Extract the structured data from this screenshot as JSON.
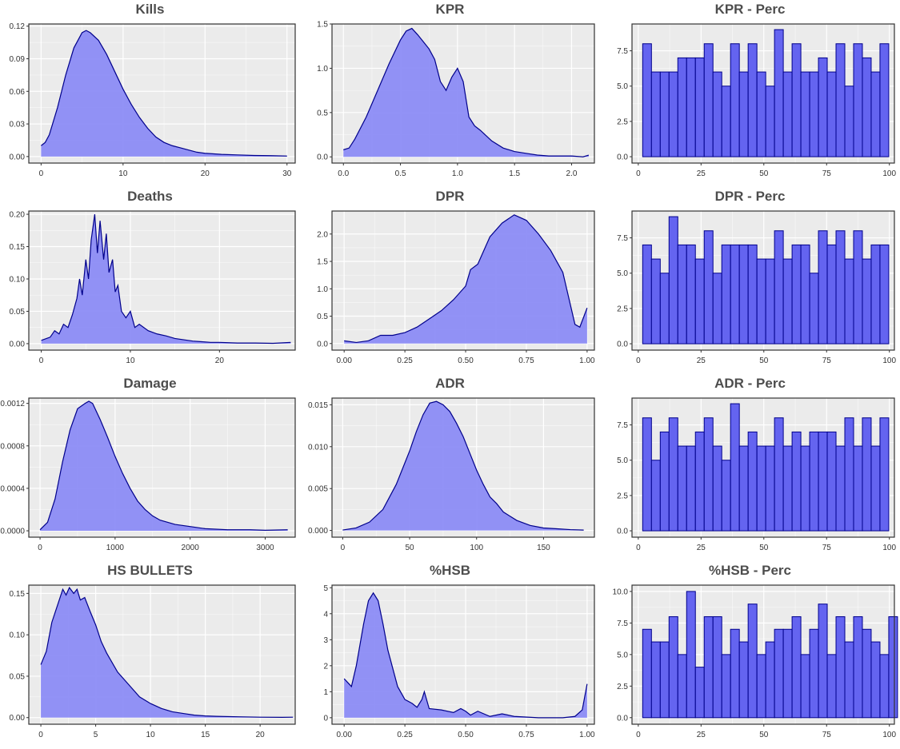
{
  "theme": {
    "panel_bg": "#ebebeb",
    "grid_major": "#ffffff",
    "density_fill": "#8c8cf5",
    "density_line": "#00008b",
    "bar_fill": "#6464f0",
    "bar_line": "#00008b",
    "title_color": "#4d4d4d",
    "tick_color": "#333333"
  },
  "chart_data": [
    {
      "title": "Kills",
      "type": "area",
      "xlim": [
        -1.5,
        31
      ],
      "ylim": [
        -0.006,
        0.122
      ],
      "xticks": [
        0,
        10,
        20,
        30
      ],
      "yticks": [
        0.0,
        0.03,
        0.06,
        0.09,
        0.12
      ],
      "ytick_labels": [
        "0.00",
        "0.03",
        "0.06",
        "0.09",
        "0.12"
      ],
      "x": [
        0,
        0.5,
        1,
        2,
        3,
        4,
        5,
        5.5,
        6,
        7,
        8,
        9,
        10,
        11,
        12,
        13,
        14,
        15,
        16,
        17,
        18,
        19,
        20,
        22,
        24,
        26,
        28,
        30
      ],
      "y": [
        0.01,
        0.013,
        0.02,
        0.045,
        0.075,
        0.1,
        0.114,
        0.116,
        0.114,
        0.107,
        0.094,
        0.078,
        0.062,
        0.048,
        0.036,
        0.026,
        0.018,
        0.013,
        0.01,
        0.008,
        0.006,
        0.004,
        0.003,
        0.002,
        0.0015,
        0.001,
        0.0008,
        0.0005
      ]
    },
    {
      "title": "KPR",
      "type": "area",
      "xlim": [
        -0.1,
        2.2
      ],
      "ylim": [
        -0.07,
        1.5
      ],
      "xticks": [
        0.0,
        0.5,
        1.0,
        1.5,
        2.0
      ],
      "xtick_labels": [
        "0.0",
        "0.5",
        "1.0",
        "1.5",
        "2.0"
      ],
      "yticks": [
        0.0,
        0.5,
        1.0,
        1.5
      ],
      "ytick_labels": [
        "0.0",
        "0.5",
        "1.0",
        "1.5"
      ],
      "x": [
        0.0,
        0.05,
        0.1,
        0.2,
        0.3,
        0.4,
        0.5,
        0.55,
        0.6,
        0.65,
        0.7,
        0.75,
        0.8,
        0.85,
        0.9,
        0.95,
        1.0,
        1.05,
        1.1,
        1.15,
        1.2,
        1.3,
        1.4,
        1.5,
        1.6,
        1.7,
        1.8,
        2.0,
        2.1,
        2.15
      ],
      "y": [
        0.08,
        0.1,
        0.2,
        0.45,
        0.75,
        1.05,
        1.32,
        1.42,
        1.45,
        1.38,
        1.3,
        1.22,
        1.1,
        0.85,
        0.75,
        0.9,
        1.0,
        0.85,
        0.45,
        0.35,
        0.3,
        0.18,
        0.1,
        0.06,
        0.04,
        0.02,
        0.01,
        0.01,
        0.0,
        0.02
      ]
    },
    {
      "title": "KPR - Perc",
      "type": "bar",
      "xlim": [
        -2.5,
        102
      ],
      "ylim": [
        -0.45,
        9.4
      ],
      "xticks": [
        0,
        25,
        50,
        75,
        100
      ],
      "yticks": [
        0.0,
        2.5,
        5.0,
        7.5
      ],
      "ytick_labels": [
        "0.0",
        "2.5",
        "5.0",
        "7.5"
      ],
      "bin_start": 1.75,
      "bin_width": 3.5,
      "counts": [
        8,
        6,
        6,
        6,
        7,
        7,
        7,
        8,
        6,
        5,
        8,
        6,
        8,
        6,
        5,
        9,
        6,
        8,
        6,
        6,
        7,
        6,
        8,
        5,
        8,
        7,
        6,
        8
      ]
    },
    {
      "title": "Deaths",
      "type": "area",
      "xlim": [
        -1.4,
        28.5
      ],
      "ylim": [
        -0.01,
        0.205
      ],
      "xticks": [
        0,
        10,
        20
      ],
      "yticks": [
        0.0,
        0.05,
        0.1,
        0.15,
        0.2
      ],
      "ytick_labels": [
        "0.00",
        "0.05",
        "0.10",
        "0.15",
        "0.20"
      ],
      "x": [
        0,
        1,
        1.5,
        2,
        2.5,
        3,
        3.5,
        4,
        4.3,
        4.6,
        5,
        5.3,
        5.6,
        6,
        6.3,
        6.6,
        7,
        7.3,
        7.6,
        8,
        8.3,
        8.6,
        9,
        9.5,
        10,
        10.5,
        11,
        12,
        13,
        14,
        15,
        16,
        17,
        18,
        19,
        20,
        22,
        24,
        26,
        28
      ],
      "y": [
        0.005,
        0.01,
        0.02,
        0.015,
        0.03,
        0.025,
        0.045,
        0.07,
        0.1,
        0.075,
        0.13,
        0.1,
        0.16,
        0.2,
        0.14,
        0.19,
        0.13,
        0.17,
        0.11,
        0.13,
        0.08,
        0.09,
        0.05,
        0.04,
        0.05,
        0.025,
        0.03,
        0.02,
        0.015,
        0.012,
        0.008,
        0.006,
        0.004,
        0.003,
        0.002,
        0.002,
        0.001,
        0.001,
        0.0005,
        0.002
      ]
    },
    {
      "title": "DPR",
      "type": "area",
      "xlim": [
        -0.05,
        1.03
      ],
      "ylim": [
        -0.12,
        2.42
      ],
      "xticks": [
        0.0,
        0.25,
        0.5,
        0.75,
        1.0
      ],
      "xtick_labels": [
        "0.00",
        "0.25",
        "0.50",
        "0.75",
        "1.00"
      ],
      "yticks": [
        0.0,
        0.5,
        1.0,
        1.5,
        2.0
      ],
      "ytick_labels": [
        "0.0",
        "0.5",
        "1.0",
        "1.5",
        "2.0"
      ],
      "x": [
        0.0,
        0.05,
        0.1,
        0.15,
        0.2,
        0.25,
        0.3,
        0.35,
        0.4,
        0.45,
        0.5,
        0.52,
        0.55,
        0.58,
        0.6,
        0.65,
        0.7,
        0.75,
        0.8,
        0.85,
        0.9,
        0.95,
        0.97,
        1.0
      ],
      "y": [
        0.05,
        0.02,
        0.05,
        0.15,
        0.15,
        0.2,
        0.3,
        0.45,
        0.6,
        0.8,
        1.05,
        1.35,
        1.45,
        1.75,
        1.95,
        2.2,
        2.35,
        2.25,
        2.0,
        1.7,
        1.3,
        0.35,
        0.3,
        0.65
      ]
    },
    {
      "title": "DPR - Perc",
      "type": "bar",
      "xlim": [
        -2.5,
        102
      ],
      "ylim": [
        -0.45,
        9.4
      ],
      "xticks": [
        0,
        25,
        50,
        75,
        100
      ],
      "yticks": [
        0.0,
        2.5,
        5.0,
        7.5
      ],
      "ytick_labels": [
        "0.0",
        "2.5",
        "5.0",
        "7.5"
      ],
      "bin_start": 1.75,
      "bin_width": 3.5,
      "counts": [
        7,
        6,
        5,
        9,
        7,
        7,
        6,
        8,
        5,
        7,
        7,
        7,
        7,
        6,
        6,
        8,
        6,
        7,
        7,
        5,
        8,
        7,
        8,
        6,
        8,
        6,
        7,
        7
      ]
    },
    {
      "title": "Damage",
      "type": "area",
      "xlim": [
        -150,
        3400
      ],
      "ylim": [
        -6e-05,
        0.00125
      ],
      "xticks": [
        0,
        1000,
        2000,
        3000
      ],
      "yticks": [
        0.0,
        0.0004,
        0.0008,
        0.0012
      ],
      "ytick_labels": [
        "0.0000",
        "0.0004",
        "0.0008",
        "0.0012"
      ],
      "x": [
        0,
        100,
        200,
        300,
        400,
        500,
        600,
        650,
        700,
        800,
        900,
        1000,
        1100,
        1200,
        1300,
        1400,
        1500,
        1600,
        1800,
        2000,
        2200,
        2500,
        2800,
        3000,
        3300
      ],
      "y": [
        1e-05,
        8e-05,
        0.0003,
        0.00065,
        0.00095,
        0.00115,
        0.0012,
        0.00122,
        0.0012,
        0.00105,
        0.00088,
        0.0007,
        0.00054,
        0.0004,
        0.00028,
        0.0002,
        0.00014,
        0.0001,
        6e-05,
        4e-05,
        2e-05,
        1e-05,
        1e-05,
        5e-06,
        1e-05
      ]
    },
    {
      "title": "ADR",
      "type": "area",
      "xlim": [
        -8,
        188
      ],
      "ylim": [
        -0.0008,
        0.0158
      ],
      "xticks": [
        0,
        50,
        100,
        150
      ],
      "yticks": [
        0.0,
        0.005,
        0.01,
        0.015
      ],
      "ytick_labels": [
        "0.000",
        "0.005",
        "0.010",
        "0.015"
      ],
      "x": [
        0,
        10,
        20,
        30,
        40,
        50,
        55,
        60,
        65,
        70,
        75,
        80,
        85,
        90,
        95,
        100,
        105,
        110,
        115,
        120,
        130,
        140,
        150,
        160,
        170,
        180
      ],
      "y": [
        5e-05,
        0.0003,
        0.001,
        0.0025,
        0.0055,
        0.0095,
        0.0118,
        0.0138,
        0.0152,
        0.0154,
        0.015,
        0.0142,
        0.0128,
        0.0112,
        0.0092,
        0.0072,
        0.0055,
        0.004,
        0.0032,
        0.0022,
        0.0012,
        0.0006,
        0.0003,
        0.0002,
        0.0001,
        5e-05
      ]
    },
    {
      "title": "ADR - Perc",
      "type": "bar",
      "xlim": [
        -2.5,
        102
      ],
      "ylim": [
        -0.45,
        9.4
      ],
      "xticks": [
        0,
        25,
        50,
        75,
        100
      ],
      "yticks": [
        0.0,
        2.5,
        5.0,
        7.5
      ],
      "ytick_labels": [
        "0.0",
        "2.5",
        "5.0",
        "7.5"
      ],
      "bin_start": 1.75,
      "bin_width": 3.5,
      "counts": [
        8,
        5,
        7,
        8,
        6,
        6,
        7,
        8,
        6,
        5,
        9,
        6,
        7,
        6,
        6,
        8,
        6,
        7,
        6,
        7,
        7,
        7,
        6,
        8,
        6,
        8,
        6,
        8
      ]
    },
    {
      "title": "HS BULLETS",
      "type": "area",
      "xlim": [
        -1.1,
        23.2
      ],
      "ylim": [
        -0.008,
        0.16
      ],
      "xticks": [
        0,
        5,
        10,
        15,
        20
      ],
      "yticks": [
        0.0,
        0.05,
        0.1,
        0.15
      ],
      "ytick_labels": [
        "0.00",
        "0.05",
        "0.10",
        "0.15"
      ],
      "x": [
        0,
        0.5,
        1,
        1.5,
        2,
        2.3,
        2.6,
        3,
        3.3,
        3.6,
        4,
        4.5,
        5,
        5.5,
        6,
        7,
        8,
        9,
        10,
        11,
        12,
        13,
        14,
        15,
        16,
        18,
        20,
        22,
        23
      ],
      "y": [
        0.064,
        0.08,
        0.115,
        0.135,
        0.155,
        0.148,
        0.157,
        0.15,
        0.155,
        0.142,
        0.145,
        0.128,
        0.112,
        0.092,
        0.078,
        0.055,
        0.04,
        0.025,
        0.017,
        0.011,
        0.007,
        0.005,
        0.003,
        0.002,
        0.0015,
        0.001,
        0.0005,
        0.0003,
        0.0005
      ]
    },
    {
      "title": "%HSB",
      "type": "area",
      "xlim": [
        -0.05,
        1.03
      ],
      "ylim": [
        -0.25,
        5.1
      ],
      "xticks": [
        0.0,
        0.25,
        0.5,
        0.75,
        1.0
      ],
      "xtick_labels": [
        "0.00",
        "0.25",
        "0.50",
        "0.75",
        "1.00"
      ],
      "yticks": [
        0,
        1,
        2,
        3,
        4,
        5
      ],
      "x": [
        0.0,
        0.01,
        0.03,
        0.05,
        0.08,
        0.1,
        0.12,
        0.14,
        0.16,
        0.18,
        0.2,
        0.22,
        0.25,
        0.28,
        0.3,
        0.32,
        0.33,
        0.35,
        0.4,
        0.45,
        0.48,
        0.5,
        0.52,
        0.55,
        0.6,
        0.65,
        0.7,
        0.8,
        0.9,
        0.95,
        0.98,
        0.99,
        1.0
      ],
      "y": [
        1.5,
        1.4,
        1.2,
        2.0,
        3.6,
        4.5,
        4.8,
        4.5,
        3.6,
        2.6,
        1.9,
        1.2,
        0.7,
        0.55,
        0.4,
        0.7,
        1.0,
        0.35,
        0.3,
        0.2,
        0.35,
        0.25,
        0.1,
        0.25,
        0.05,
        0.15,
        0.05,
        0.0,
        0.0,
        0.05,
        0.3,
        0.8,
        1.3
      ]
    },
    {
      "title": "%HSB - Perc",
      "type": "bar",
      "xlim": [
        -2.5,
        102
      ],
      "ylim": [
        -0.52,
        10.5
      ],
      "xticks": [
        0,
        25,
        50,
        75,
        100
      ],
      "yticks": [
        0.0,
        2.5,
        5.0,
        7.5,
        10.0
      ],
      "ytick_labels": [
        "0.0",
        "2.5",
        "5.0",
        "7.5",
        "10.0"
      ],
      "bin_start": 1.75,
      "bin_width": 3.5,
      "counts": [
        7,
        6,
        6,
        8,
        5,
        10,
        4,
        8,
        8,
        5,
        7,
        6,
        9,
        5,
        6,
        7,
        7,
        8,
        5,
        7,
        9,
        5,
        8,
        6,
        8,
        7,
        6,
        5,
        8
      ]
    }
  ]
}
